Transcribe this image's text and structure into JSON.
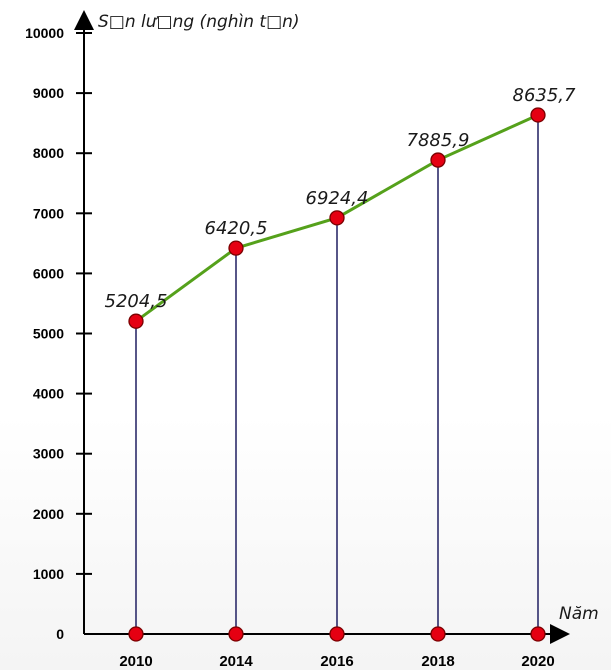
{
  "chart_data": {
    "type": "line",
    "title": "",
    "ylabel": "S□n lư□ng (nghìn t□n)",
    "xlabel": "Năm",
    "ylim": [
      0,
      10000
    ],
    "yticks": [
      0,
      1000,
      2000,
      3000,
      4000,
      5000,
      6000,
      7000,
      8000,
      9000,
      10000
    ],
    "categories": [
      "2010",
      "2014",
      "2016",
      "2018",
      "2020"
    ],
    "series": [
      {
        "values": [
          5204.5,
          6420.5,
          6924.4,
          7885.9,
          8635.7
        ],
        "labels": [
          "5204,5",
          "6420,5",
          "6924,4",
          "7885,9",
          "8635,7"
        ],
        "color": "#55a11b",
        "marker_color": "#e50012"
      }
    ],
    "grid": false,
    "legend": "none"
  }
}
